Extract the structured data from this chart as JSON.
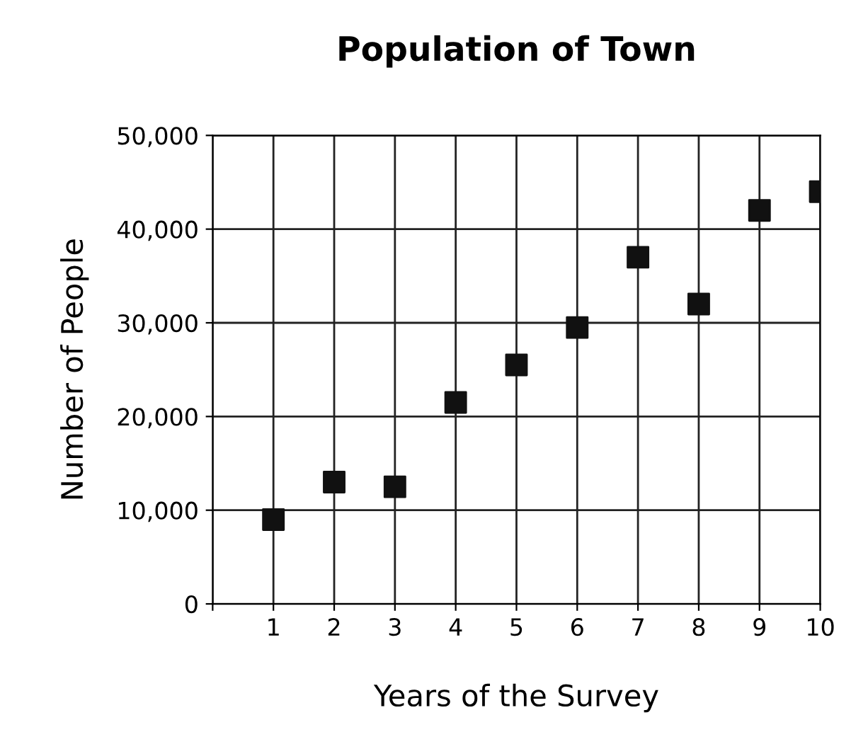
{
  "chart_data": {
    "type": "scatter",
    "title": "Population of Town",
    "xlabel": "Years of the Survey",
    "ylabel": "Number of People",
    "x": [
      1,
      2,
      3,
      4,
      5,
      6,
      7,
      8,
      9,
      10
    ],
    "series": [
      {
        "color": "#111111",
        "values": [
          9000,
          13000,
          12500,
          21500,
          25500,
          29500,
          37000,
          32000,
          42000,
          44000
        ]
      }
    ],
    "xlim": [
      0,
      10
    ],
    "xticks": [
      {
        "value": 0,
        "label": null
      },
      1,
      2,
      3,
      4,
      5,
      6,
      7,
      8,
      9,
      10
    ],
    "ylim": [
      0,
      50000
    ],
    "yticks": [
      0,
      {
        "value": 10000,
        "label": "10,000"
      },
      {
        "value": 20000,
        "label": "20,000"
      },
      {
        "value": 30000,
        "label": "30,000"
      },
      {
        "value": 40000,
        "label": "40,000"
      },
      {
        "value": 50000,
        "label": "50,000"
      }
    ],
    "grid": true,
    "marker": "square"
  }
}
